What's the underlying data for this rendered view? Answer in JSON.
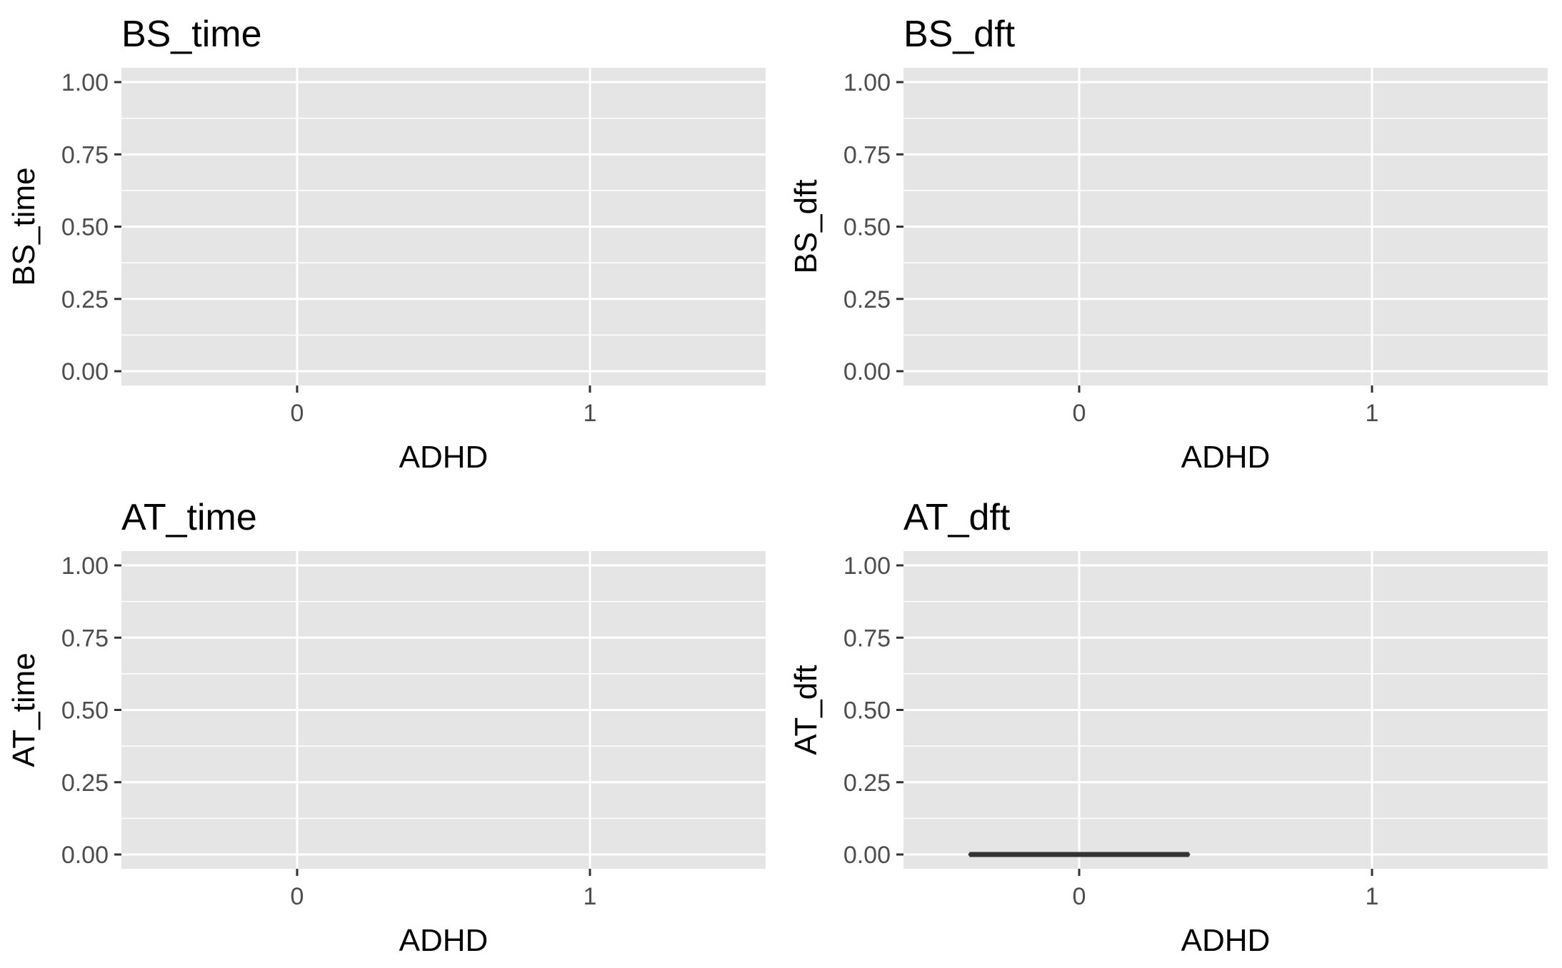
{
  "chart_data": [
    {
      "type": "boxplot",
      "title": "BS_time",
      "xlabel": "ADHD",
      "ylabel": "BS_time",
      "categories": [
        "0",
        "1"
      ],
      "ylim": [
        0,
        1
      ],
      "yticks": [
        "0.00",
        "0.25",
        "0.50",
        "0.75",
        "1.00"
      ],
      "grid": true,
      "series": []
    },
    {
      "type": "boxplot",
      "title": "BS_dft",
      "xlabel": "ADHD",
      "ylabel": "BS_dft",
      "categories": [
        "0",
        "1"
      ],
      "ylim": [
        0,
        1
      ],
      "yticks": [
        "0.00",
        "0.25",
        "0.50",
        "0.75",
        "1.00"
      ],
      "grid": true,
      "series": []
    },
    {
      "type": "boxplot",
      "title": "AT_time",
      "xlabel": "ADHD",
      "ylabel": "AT_time",
      "categories": [
        "0",
        "1"
      ],
      "ylim": [
        0,
        1
      ],
      "yticks": [
        "0.00",
        "0.25",
        "0.50",
        "0.75",
        "1.00"
      ],
      "grid": true,
      "series": []
    },
    {
      "type": "boxplot",
      "title": "AT_dft",
      "xlabel": "ADHD",
      "ylabel": "AT_dft",
      "categories": [
        "0",
        "1"
      ],
      "ylim": [
        0,
        1
      ],
      "yticks": [
        "0.00",
        "0.25",
        "0.50",
        "0.75",
        "1.00"
      ],
      "grid": true,
      "series": [
        {
          "category": "0",
          "min": 0,
          "q1": 0,
          "median": 0,
          "q3": 0,
          "max": 0
        }
      ]
    }
  ],
  "colors": {
    "panel_background": "#e5e5e5",
    "grid_line": "#ffffff",
    "box_line": "#333333",
    "tick_mark": "#333333",
    "tick_label": "#4d4d4d"
  }
}
